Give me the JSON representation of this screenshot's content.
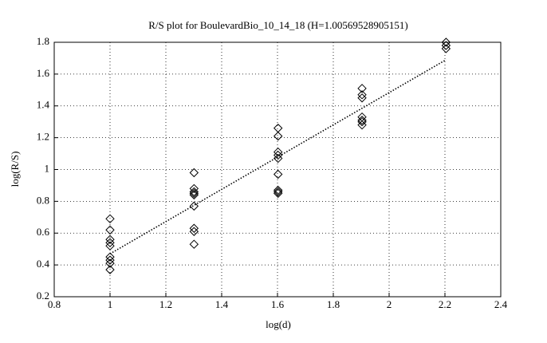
{
  "chart_data": {
    "type": "scatter",
    "title": "R/S plot for BoulevardBio_10_14_18 (H=1.00569528905151)",
    "x_label": "log(d)",
    "y_label": "log(R/S)",
    "x": [
      1,
      1,
      1,
      1,
      1,
      1,
      1,
      1,
      1,
      1.301,
      1.301,
      1.301,
      1.301,
      1.301,
      1.301,
      1.301,
      1.301,
      1.301,
      1.602,
      1.602,
      1.602,
      1.602,
      1.602,
      1.602,
      1.602,
      1.602,
      1.602,
      1.903,
      1.903,
      1.903,
      1.903,
      1.903,
      1.903,
      1.903,
      2.204,
      2.204,
      2.204
    ],
    "values": [
      0.69,
      0.62,
      0.56,
      0.54,
      0.52,
      0.45,
      0.43,
      0.41,
      0.37,
      0.98,
      0.88,
      0.86,
      0.85,
      0.84,
      0.77,
      0.63,
      0.61,
      0.53,
      1.26,
      1.21,
      1.11,
      1.09,
      1.07,
      0.97,
      0.87,
      0.86,
      0.85,
      1.51,
      1.47,
      1.45,
      1.33,
      1.31,
      1.3,
      1.28,
      1.8,
      1.78,
      1.76
    ],
    "color": "#000000",
    "fit_line": {
      "x": [
        1,
        2.204
      ],
      "values": [
        0.47,
        1.69
      ],
      "color": "#000000"
    },
    "xlim": [
      0.8,
      2.4
    ],
    "xticks": [
      0.8,
      1,
      1.2,
      1.4,
      1.6,
      1.8,
      2,
      2.2,
      2.4
    ],
    "ylim": [
      0.2,
      1.8
    ],
    "yticks": [
      0.2,
      0.4,
      0.6,
      0.8,
      1,
      1.2,
      1.4,
      1.6,
      1.8
    ],
    "grid": true
  }
}
